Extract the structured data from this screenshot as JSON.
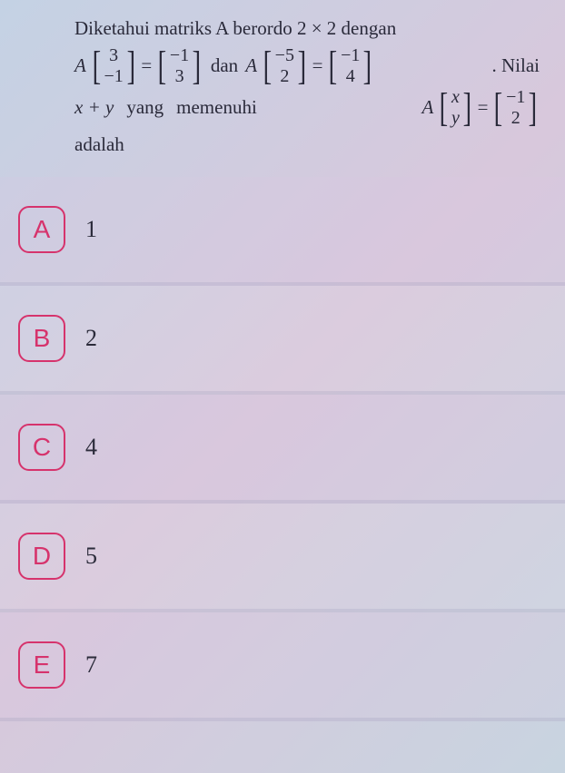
{
  "question": {
    "line1_a": "Diketahui matriks A berordo 2 × 2 dengan",
    "A_label": "A",
    "eq": "=",
    "dan": "dan",
    "dot_nilai": ". Nilai",
    "xy_text": "x + y",
    "yang": "yang",
    "memenuhi": "memenuhi",
    "adalah": "adalah",
    "m1": {
      "r1": "3",
      "r2": "−1"
    },
    "m2": {
      "r1": "−1",
      "r2": "3"
    },
    "m3": {
      "r1": "−5",
      "r2": "2"
    },
    "m4": {
      "r1": "−1",
      "r2": "4"
    },
    "m5": {
      "r1": "x",
      "r2": "y"
    },
    "m6": {
      "r1": "−1",
      "r2": "2"
    }
  },
  "options": [
    {
      "letter": "A",
      "text": "1"
    },
    {
      "letter": "B",
      "text": "2"
    },
    {
      "letter": "C",
      "text": "4"
    },
    {
      "letter": "D",
      "text": "5"
    },
    {
      "letter": "E",
      "text": "7"
    }
  ],
  "colors": {
    "accent": "#d6336c",
    "text": "#2a2a3a"
  }
}
